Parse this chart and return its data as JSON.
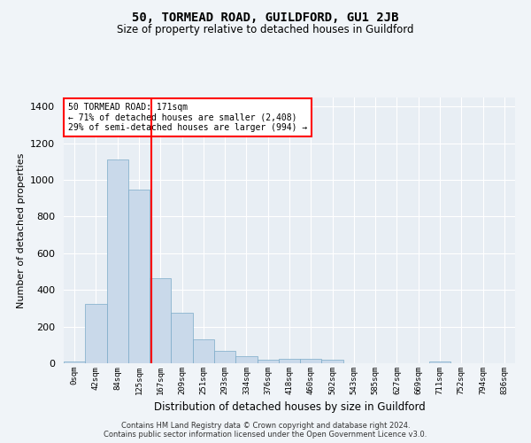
{
  "title": "50, TORMEAD ROAD, GUILDFORD, GU1 2JB",
  "subtitle": "Size of property relative to detached houses in Guildford",
  "xlabel": "Distribution of detached houses by size in Guildford",
  "ylabel": "Number of detached properties",
  "bin_labels": [
    "0sqm",
    "42sqm",
    "84sqm",
    "125sqm",
    "167sqm",
    "209sqm",
    "251sqm",
    "293sqm",
    "334sqm",
    "376sqm",
    "418sqm",
    "460sqm",
    "502sqm",
    "543sqm",
    "585sqm",
    "627sqm",
    "669sqm",
    "711sqm",
    "752sqm",
    "794sqm",
    "836sqm"
  ],
  "bar_heights": [
    10,
    325,
    1110,
    945,
    465,
    275,
    130,
    70,
    40,
    20,
    25,
    25,
    18,
    0,
    0,
    0,
    0,
    12,
    0,
    0,
    0
  ],
  "bar_color": "#c9d9ea",
  "bar_edge_color": "#7aaac8",
  "annotation_line1": "50 TORMEAD ROAD: 171sqm",
  "annotation_line2": "← 71% of detached houses are smaller (2,408)",
  "annotation_line3": "29% of semi-detached houses are larger (994) →",
  "ylim": [
    0,
    1450
  ],
  "yticks": [
    0,
    200,
    400,
    600,
    800,
    1000,
    1200,
    1400
  ],
  "fig_bg_color": "#f0f4f8",
  "plot_bg_color": "#e8eef4",
  "grid_color": "#ffffff",
  "footer_line1": "Contains HM Land Registry data © Crown copyright and database right 2024.",
  "footer_line2": "Contains public sector information licensed under the Open Government Licence v3.0."
}
